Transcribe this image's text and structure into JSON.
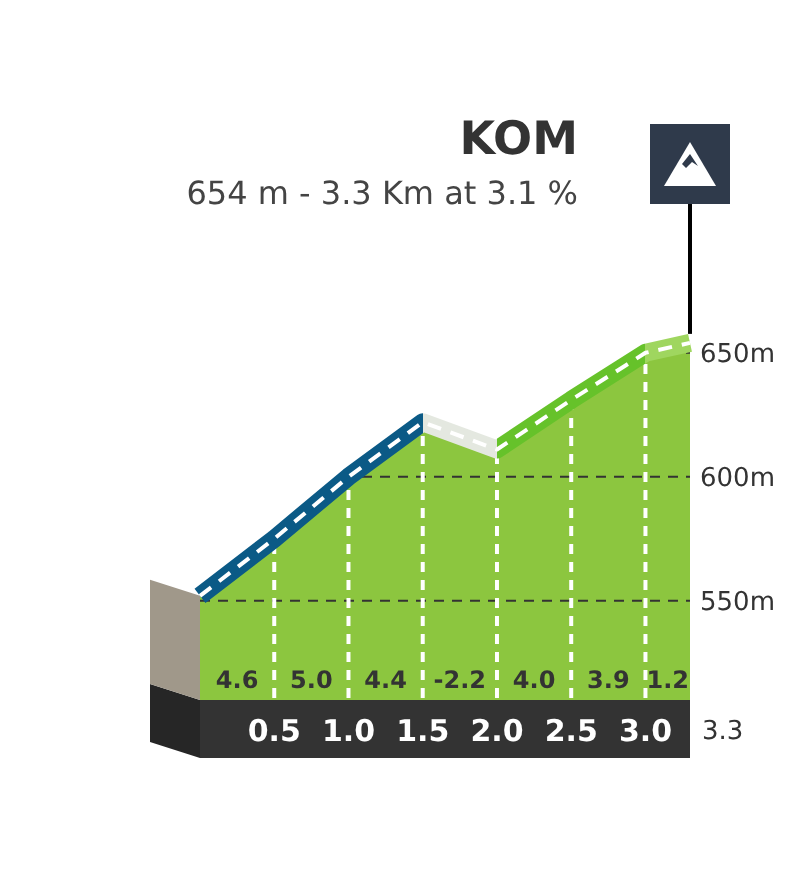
{
  "chart_data": {
    "type": "area",
    "title": "KOM",
    "subtitle": "654 m - 3.3 Km at 3.1 %",
    "x": [
      0,
      0.5,
      1,
      1.5,
      2,
      2.5,
      3,
      3.3
    ],
    "series": [
      {
        "values": [
          552,
          575,
          600,
          622,
          611,
          631,
          650,
          654
        ],
        "color": "#8cc63f",
        "colors": [
          "#0b5a86",
          "#0b5a86",
          "#0b5a86",
          "#e4e8e0",
          "#66c22a",
          "#66c22a",
          "#9fd65f",
          "#9fd65f"
        ]
      }
    ],
    "xlim": [
      0,
      3.3
    ],
    "xticks": [
      0.5,
      {
        "value": 1,
        "label": "1.0"
      },
      1.5,
      {
        "value": 2,
        "label": "2.0"
      },
      2.5,
      {
        "value": 3,
        "label": "3.0"
      }
    ],
    "ylim": [
      510,
      660
    ],
    "yticks": [
      {
        "value": 550,
        "label": "550m"
      },
      {
        "value": 600,
        "label": "600m"
      },
      {
        "value": 650,
        "label": "650m"
      }
    ],
    "grid": true,
    "annotations": [
      "4.6",
      "5.0",
      "4.4",
      "-2.2",
      "4.0",
      "3.9",
      "1.2",
      "3.3"
    ]
  }
}
